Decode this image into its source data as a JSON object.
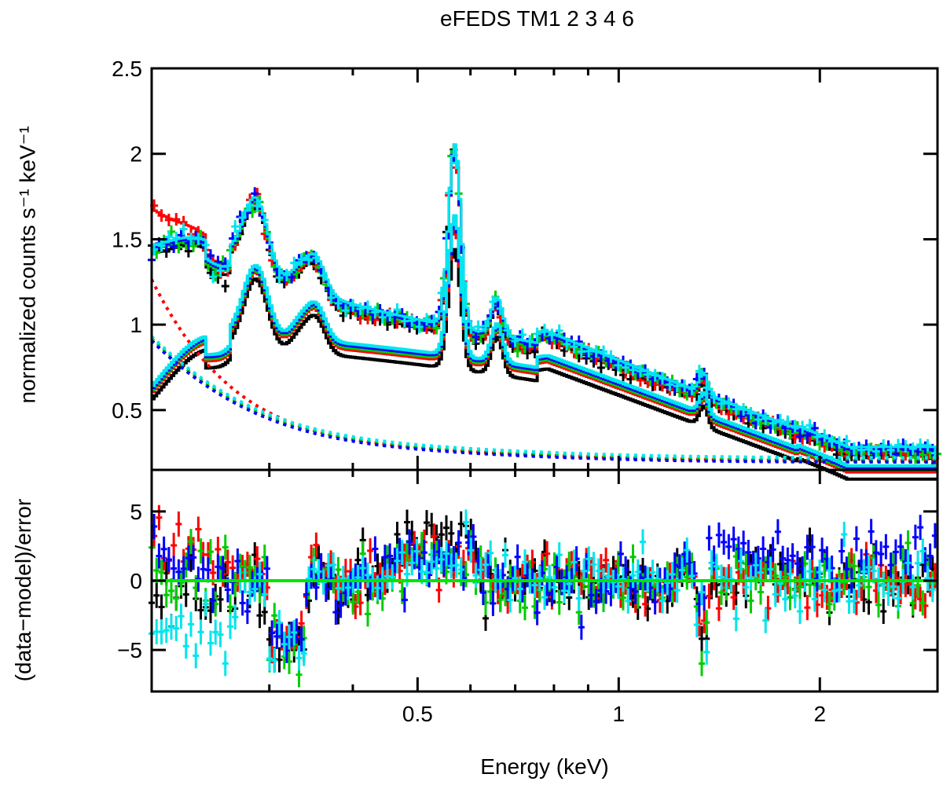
{
  "chart_data": [
    {
      "panel": "spectrum",
      "type": "line",
      "title": "eFEDS TM1 2 3 4 6",
      "xlabel": "",
      "ylabel": "normalized counts s⁻¹ keV⁻¹",
      "xscale": "log",
      "xlim": [
        0.2,
        3.0
      ],
      "ylim": [
        0.15,
        2.5
      ],
      "yticks": [
        "0.5",
        "1",
        "1.5",
        "2",
        "2.5"
      ],
      "ytick_values": [
        0.5,
        1.0,
        1.5,
        2.0,
        2.5
      ],
      "series": [
        {
          "name": "TM1",
          "color": "#000000",
          "total_peak": 2.08,
          "source_peak": 1.65
        },
        {
          "name": "TM2",
          "color": "#ff0000",
          "total_peak": 2.05,
          "source_peak": 1.75
        },
        {
          "name": "TM3",
          "color": "#00cc00",
          "total_peak": 2.07,
          "source_peak": 1.78
        },
        {
          "name": "TM4",
          "color": "#0000ff",
          "total_peak": 2.02,
          "source_peak": 1.76
        },
        {
          "name": "TM6",
          "color": "#00e5ee",
          "total_peak": 2.05,
          "source_peak": 1.77
        }
      ],
      "features_keV": [
        0.28,
        0.36,
        0.56,
        0.65,
        1.33,
        1.48
      ]
    },
    {
      "panel": "residuals",
      "type": "scatter",
      "xlabel": "Energy (keV)",
      "ylabel": "(data−model)/error",
      "xscale": "log",
      "xlim": [
        0.2,
        3.0
      ],
      "ylim": [
        -8,
        8
      ],
      "yticks": [
        "−5",
        "0",
        "5"
      ],
      "ytick_values": [
        -5,
        0,
        5
      ],
      "xticks": [
        "0.5",
        "1",
        "2"
      ],
      "xtick_values": [
        0.5,
        1.0,
        2.0
      ],
      "zero_line_color": "#00e600"
    }
  ]
}
